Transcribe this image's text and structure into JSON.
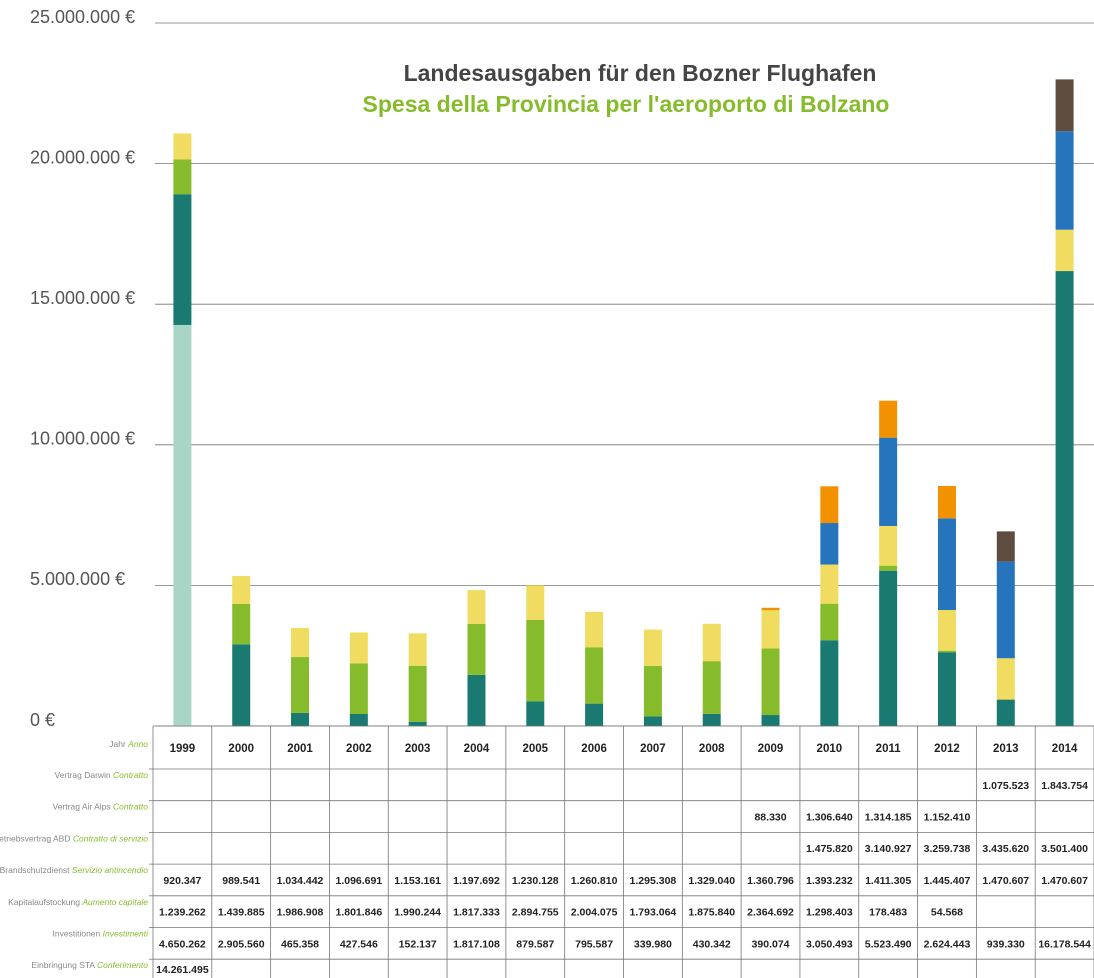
{
  "chart_data": {
    "type": "stacked_bar",
    "title": "Landesausgaben für den Bozner Flughafen",
    "subtitle": "Spesa della Provincia per l'aeroporto di Bolzano",
    "row_header": {
      "name": "Jahr",
      "name_it": "Anno"
    },
    "categories": [
      "1999",
      "2000",
      "2001",
      "2002",
      "2003",
      "2004",
      "2005",
      "2006",
      "2007",
      "2008",
      "2009",
      "2010",
      "2011",
      "2012",
      "2013",
      "2014"
    ],
    "ylim": [
      0,
      25000000
    ],
    "yticks": [
      {
        "value": 0,
        "label": "0 €"
      },
      {
        "value": 5000000,
        "label": "5.000.000 €"
      },
      {
        "value": 10000000,
        "label": "10.000.000 €"
      },
      {
        "value": 15000000,
        "label": "15.000.000 €"
      },
      {
        "value": 20000000,
        "label": "20.000.000 €"
      },
      {
        "value": 25000000,
        "label": "25.000.000 €"
      }
    ],
    "grid": true,
    "series": [
      {
        "name": "Vertrag Darwin",
        "name_it": "Contratto",
        "color": "#5e4d3f",
        "values": [
          null,
          null,
          null,
          null,
          null,
          null,
          null,
          null,
          null,
          null,
          null,
          null,
          null,
          null,
          1075523,
          1843754
        ],
        "value_labels": [
          null,
          null,
          null,
          null,
          null,
          null,
          null,
          null,
          null,
          null,
          null,
          null,
          null,
          null,
          "1.075.523",
          "1.843.754"
        ]
      },
      {
        "name": "Vertrag Air Alps",
        "name_it": "Contratto",
        "color": "#f39200",
        "values": [
          null,
          null,
          null,
          null,
          null,
          null,
          null,
          null,
          null,
          null,
          88330,
          1306640,
          1314185,
          1152410,
          null,
          null
        ],
        "value_labels": [
          null,
          null,
          null,
          null,
          null,
          null,
          null,
          null,
          null,
          null,
          "88.330",
          "1.306.640",
          "1.314.185",
          "1.152.410",
          null,
          null
        ]
      },
      {
        "name": "Betriebsvertrag ABD",
        "name_it": "Contratto di servizio",
        "color": "#2674bc",
        "values": [
          null,
          null,
          null,
          null,
          null,
          null,
          null,
          null,
          null,
          null,
          null,
          1475820,
          3140927,
          3259738,
          3435620,
          3501400
        ],
        "value_labels": [
          null,
          null,
          null,
          null,
          null,
          null,
          null,
          null,
          null,
          null,
          null,
          "1.475.820",
          "3.140.927",
          "3.259.738",
          "3.435.620",
          "3.501.400"
        ]
      },
      {
        "name": "Brandschutzdienst",
        "name_it": "Servizio antincendio",
        "color": "#f0dc60",
        "values": [
          920347,
          989541,
          1034442,
          1096691,
          1153161,
          1197692,
          1230128,
          1260810,
          1295308,
          1329040,
          1360796,
          1393232,
          1411305,
          1445407,
          1470607,
          1470607
        ],
        "value_labels": [
          "920.347",
          "989.541",
          "1.034.442",
          "1.096.691",
          "1.153.161",
          "1.197.692",
          "1.230.128",
          "1.260.810",
          "1.295.308",
          "1.329.040",
          "1.360.796",
          "1.393.232",
          "1.411.305",
          "1.445.407",
          "1.470.607",
          "1.470.607"
        ]
      },
      {
        "name": "Kapitalaufstockung",
        "name_it": "Aumento capitale",
        "color": "#86bc2b",
        "values": [
          1239262,
          1439885,
          1986908,
          1801846,
          1990244,
          1817333,
          2894755,
          2004075,
          1793064,
          1875840,
          2364692,
          1298403,
          178483,
          54568,
          null,
          null
        ],
        "value_labels": [
          "1.239.262",
          "1.439.885",
          "1.986.908",
          "1.801.846",
          "1.990.244",
          "1.817.333",
          "2.894.755",
          "2.004.075",
          "1.793.064",
          "1.875.840",
          "2.364.692",
          "1.298.403",
          "178.483",
          "54.568",
          null,
          null
        ]
      },
      {
        "name": "Investitionen",
        "name_it": "Investimenti",
        "color": "#1a7a72",
        "values": [
          4650262,
          2905560,
          465358,
          427546,
          152137,
          1817108,
          879587,
          795587,
          339980,
          430342,
          390074,
          3050493,
          5523490,
          2624443,
          939330,
          16178544
        ],
        "value_labels": [
          "4.650.262",
          "2.905.560",
          "465.358",
          "427.546",
          "152.137",
          "1.817.108",
          "879.587",
          "795.587",
          "339.980",
          "430.342",
          "390.074",
          "3.050.493",
          "5.523.490",
          "2.624.443",
          "939.330",
          "16.178.544"
        ]
      },
      {
        "name": "Einbringung STA",
        "name_it": "Conferimento",
        "color": "#a8d5c5",
        "values": [
          14261495,
          null,
          null,
          null,
          null,
          null,
          null,
          null,
          null,
          null,
          null,
          null,
          null,
          null,
          null,
          null
        ],
        "value_labels": [
          "14.261.495",
          null,
          null,
          null,
          null,
          null,
          null,
          null,
          null,
          null,
          null,
          null,
          null,
          null,
          null,
          null
        ]
      }
    ]
  }
}
